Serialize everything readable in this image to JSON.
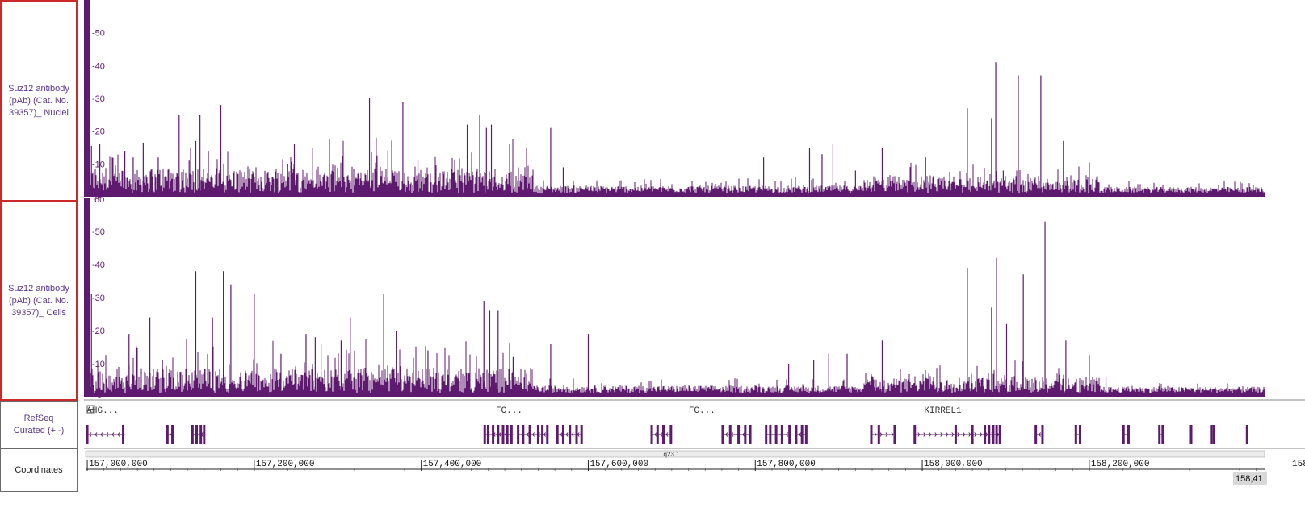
{
  "tracks": [
    {
      "id": "nuclei",
      "label": "Suz12 antibody (pAb) (Cat. No. 39357)_ Nuclei",
      "color": "#5e1a6e",
      "scale_max": 60,
      "scale_ticks": [
        "50",
        "40",
        "30",
        "20",
        "10"
      ],
      "peaks": [
        [
          157005000,
          15.5
        ],
        [
          157015000,
          16
        ],
        [
          157030000,
          12
        ],
        [
          157045000,
          14
        ],
        [
          157055000,
          12
        ],
        [
          157067000,
          16.5
        ],
        [
          157085000,
          12
        ],
        [
          157110000,
          25
        ],
        [
          157122000,
          11
        ],
        [
          157130000,
          17
        ],
        [
          157135000,
          25
        ],
        [
          157145000,
          14
        ],
        [
          157160000,
          28
        ],
        [
          157240000,
          10
        ],
        [
          157248000,
          16
        ],
        [
          157270000,
          15
        ],
        [
          157290000,
          17.5
        ],
        [
          157338000,
          30
        ],
        [
          157346000,
          18
        ],
        [
          157360000,
          14
        ],
        [
          157378000,
          29
        ],
        [
          157396000,
          11
        ],
        [
          157455000,
          22
        ],
        [
          157470000,
          25
        ],
        [
          157478000,
          21
        ],
        [
          157484000,
          22
        ],
        [
          157555000,
          21
        ],
        [
          157570000,
          9
        ],
        [
          157810000,
          12
        ],
        [
          157848000,
          6
        ],
        [
          157865000,
          15
        ],
        [
          157880000,
          13
        ],
        [
          157893000,
          16
        ],
        [
          157920000,
          8
        ],
        [
          157952000,
          15
        ],
        [
          158004000,
          12
        ],
        [
          158054000,
          27
        ],
        [
          158083000,
          24
        ],
        [
          158088000,
          41
        ],
        [
          158097000,
          8
        ],
        [
          158115000,
          37
        ],
        [
          158142000,
          37
        ],
        [
          158169000,
          17
        ]
      ]
    },
    {
      "id": "cells",
      "label": "Suz12 antibody (pAb) (Cat. No. 39357)_ Cells",
      "color": "#5e1a6e",
      "scale_max": 60,
      "scale_ticks": [
        "50",
        "40",
        "30",
        "20",
        "10"
      ],
      "peaks": [
        [
          157005000,
          31
        ],
        [
          157000000,
          15
        ],
        [
          157050000,
          19
        ],
        [
          157075000,
          24
        ],
        [
          157090000,
          11
        ],
        [
          157130000,
          38
        ],
        [
          157150000,
          24
        ],
        [
          157163000,
          38
        ],
        [
          157172000,
          34
        ],
        [
          157200000,
          31
        ],
        [
          157232000,
          13
        ],
        [
          157262000,
          19
        ],
        [
          157273000,
          18
        ],
        [
          157280000,
          16
        ],
        [
          157304000,
          17
        ],
        [
          157315000,
          24
        ],
        [
          157355000,
          31
        ],
        [
          157370000,
          20
        ],
        [
          157408000,
          14
        ],
        [
          157475000,
          29
        ],
        [
          157482000,
          26
        ],
        [
          157492000,
          26
        ],
        [
          157510000,
          12
        ],
        [
          157555000,
          16
        ],
        [
          157600000,
          19
        ],
        [
          157840000,
          10
        ],
        [
          157870000,
          11
        ],
        [
          157888000,
          13
        ],
        [
          157910000,
          13
        ],
        [
          157952000,
          17
        ],
        [
          158054000,
          39
        ],
        [
          158083000,
          27
        ],
        [
          158089000,
          42
        ],
        [
          158101000,
          22
        ],
        [
          158121000,
          37
        ],
        [
          158147000,
          53
        ],
        [
          158172000,
          17
        ],
        [
          158220000,
          6
        ]
      ]
    }
  ],
  "refseq": {
    "label": "RefSeq Curated (+|-)",
    "color": "#5e1a6e",
    "gene_labels": [
      {
        "text": "AHG...",
        "pos": 157007000
      },
      {
        "text": "FC...",
        "pos": 157497000
      },
      {
        "text": "FC...",
        "pos": 157728000
      },
      {
        "text": "KIRREL1",
        "pos": 158010000
      }
    ],
    "genes": [
      {
        "start": 156998000,
        "end": 157045000,
        "strand": "-",
        "exons": [
          157000000,
          157043000
        ]
      },
      {
        "start": 157095000,
        "end": 157103000,
        "strand": "-",
        "exons": [
          157096000,
          157102000
        ]
      },
      {
        "start": 157125000,
        "end": 157141000,
        "strand": "-",
        "exons": [
          157126000,
          157131000,
          157136000,
          157140000
        ]
      },
      {
        "start": 157475000,
        "end": 157510000,
        "strand": "-",
        "exons": [
          157476000,
          157480000,
          157486000,
          157492000,
          157498000,
          157503000,
          157508000
        ]
      },
      {
        "start": 157515000,
        "end": 157552000,
        "strand": "-",
        "exons": [
          157516000,
          157522000,
          157530000,
          157540000,
          157545000,
          157551000
        ]
      },
      {
        "start": 157562000,
        "end": 157593000,
        "strand": "-",
        "exons": [
          157563000,
          157570000,
          157578000,
          157586000,
          157592000
        ]
      },
      {
        "start": 157675000,
        "end": 157700000,
        "strand": "-",
        "exons": [
          157676000,
          157683000,
          157690000,
          157699000
        ]
      },
      {
        "start": 157760000,
        "end": 157795000,
        "strand": "-",
        "exons": [
          157761000,
          157770000,
          157780000,
          157788000,
          157794000
        ]
      },
      {
        "start": 157812000,
        "end": 157842000,
        "strand": "-",
        "exons": [
          157813000,
          157818000,
          157825000,
          157832000,
          157841000
        ]
      },
      {
        "start": 157848000,
        "end": 157862000,
        "strand": "-",
        "exons": [
          157849000,
          157856000,
          157861000
        ]
      },
      {
        "start": 157938000,
        "end": 157968000,
        "strand": "+",
        "exons": [
          157939000,
          157948000,
          157967000
        ]
      },
      {
        "start": 157990000,
        "end": 158095000,
        "strand": "+",
        "exons": [
          157991000,
          158040000,
          158060000,
          158075000,
          158080000,
          158085000,
          158089000,
          158093000
        ]
      },
      {
        "start": 158135000,
        "end": 158145000,
        "strand": "-",
        "exons": [
          158136000,
          158144000
        ]
      },
      {
        "start": 158183000,
        "end": 158190000,
        "strand": "+",
        "exons": [
          158184000,
          158189000
        ]
      },
      {
        "start": 158240000,
        "end": 158248000,
        "strand": "+",
        "exons": [
          158241000,
          158247000
        ]
      },
      {
        "start": 158283000,
        "end": 158289000,
        "strand": "+",
        "exons": [
          158284000,
          158288000
        ]
      },
      {
        "start": 158320000,
        "end": 158323000,
        "strand": "+",
        "exons": [
          158321000,
          158322000
        ]
      },
      {
        "start": 158345000,
        "end": 158350000,
        "strand": "+",
        "exons": [
          158346000,
          158349000
        ]
      },
      {
        "start": 158389000,
        "end": 158390000,
        "strand": "+",
        "exons": [
          158389000
        ]
      }
    ]
  },
  "coordinates": {
    "label": "Coordinates",
    "band_label": "q23.1",
    "range_start": 156998000,
    "range_end": 158410000,
    "ticks": [
      157000000,
      157200000,
      157400000,
      157600000,
      157800000,
      158000000,
      158200000
    ],
    "tick_labels": [
      "157,000,000",
      "157,200,000",
      "157,400,000",
      "157,600,000",
      "157,800,000",
      "158,000,000",
      "158,200,000"
    ],
    "edge_label_top": "158",
    "edge_label_bottom": "158,41"
  }
}
